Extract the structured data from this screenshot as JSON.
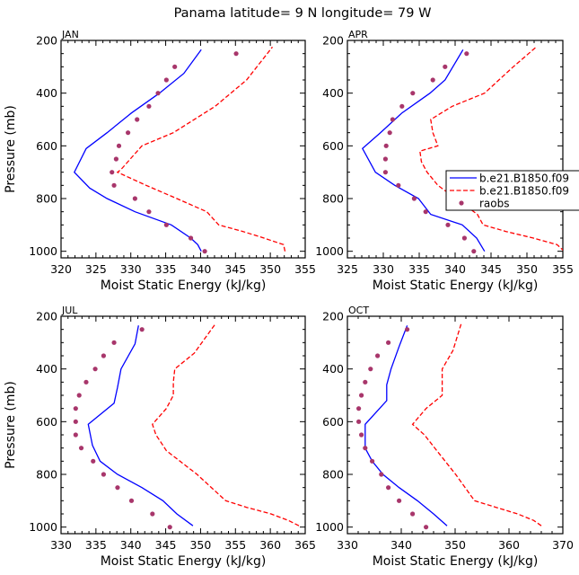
{
  "figure_title": "Panama   latitude= 9 N longitude= 79 W",
  "legend": {
    "placement": "right of APR panel",
    "entries": [
      {
        "label": "b.e21.B1850.f09",
        "style": "solid",
        "color": "#0000ff"
      },
      {
        "label": "b.e21.B1850.f09",
        "style": "dashed",
        "color": "#ff0000"
      },
      {
        "label": "raobs",
        "style": "dots",
        "color": "#a8366b"
      }
    ]
  },
  "chart_data": [
    {
      "type": "line",
      "panel": "JAN",
      "xlabel": "Moist Static Energy (kJ/kg)",
      "ylabel": "Pressure (mb)",
      "xlim": [
        320,
        355
      ],
      "ylim": [
        1025,
        200
      ],
      "xticks": [
        320,
        325,
        330,
        335,
        340,
        345,
        350,
        355
      ],
      "yticks": [
        200,
        400,
        600,
        800,
        1000
      ],
      "series": [
        {
          "style": "solid",
          "color": "#0000ff",
          "points": [
            [
              340.1,
              1000
            ],
            [
              339.6,
              975
            ],
            [
              338.6,
              950
            ],
            [
              335.8,
              900
            ],
            [
              330.6,
              850
            ],
            [
              326.6,
              800
            ],
            [
              324.1,
              760
            ],
            [
              321.9,
              700
            ],
            [
              323.6,
              610
            ],
            [
              326.6,
              550
            ],
            [
              330.1,
              475
            ],
            [
              334.1,
              400
            ],
            [
              337.6,
              325
            ],
            [
              340.1,
              235
            ]
          ]
        },
        {
          "style": "dashed",
          "color": "#ff0000",
          "points": [
            [
              352.1,
              1000
            ],
            [
              351.9,
              975
            ],
            [
              349.1,
              950
            ],
            [
              346.1,
              925
            ],
            [
              342.6,
              900
            ],
            [
              340.9,
              850
            ],
            [
              336.6,
              800
            ],
            [
              332.2,
              750
            ],
            [
              328.1,
              700
            ],
            [
              328.6,
              690
            ],
            [
              331.6,
              600
            ],
            [
              336.1,
              550
            ],
            [
              342.1,
              450
            ],
            [
              346.6,
              350
            ],
            [
              350.3,
              225
            ]
          ]
        },
        {
          "style": "dots",
          "color": "#a8366b",
          "points": [
            [
              340.6,
              1000
            ],
            [
              338.6,
              950
            ],
            [
              335.1,
              900
            ],
            [
              332.6,
              850
            ],
            [
              330.6,
              800
            ],
            [
              327.6,
              750
            ],
            [
              327.3,
              700
            ],
            [
              327.9,
              650
            ],
            [
              328.3,
              600
            ],
            [
              329.6,
              550
            ],
            [
              330.9,
              500
            ],
            [
              332.6,
              450
            ],
            [
              333.9,
              400
            ],
            [
              335.1,
              350
            ],
            [
              336.3,
              300
            ],
            [
              345.1,
              250
            ]
          ]
        }
      ]
    },
    {
      "type": "line",
      "panel": "APR",
      "xlabel": "Moist Static Energy (kJ/kg)",
      "ylabel": "",
      "xlim": [
        325,
        355
      ],
      "ylim": [
        1025,
        200
      ],
      "xticks": [
        325,
        330,
        335,
        340,
        345,
        350,
        355
      ],
      "yticks": [
        200,
        400,
        600,
        800,
        1000
      ],
      "series": [
        {
          "style": "solid",
          "color": "#0000ff",
          "points": [
            [
              344.1,
              1000
            ],
            [
              343.0,
              950
            ],
            [
              341.0,
              900
            ],
            [
              336.6,
              860
            ],
            [
              334.9,
              800
            ],
            [
              331.6,
              750
            ],
            [
              328.9,
              700
            ],
            [
              327.1,
              610
            ],
            [
              329.6,
              550
            ],
            [
              332.6,
              475
            ],
            [
              336.5,
              400
            ],
            [
              338.6,
              350
            ],
            [
              341.1,
              235
            ]
          ]
        },
        {
          "style": "dashed",
          "color": "#ff0000",
          "points": [
            [
              355.2,
              1000
            ],
            [
              354.2,
              975
            ],
            [
              350.9,
              950
            ],
            [
              347.1,
              925
            ],
            [
              343.9,
              900
            ],
            [
              343.1,
              860
            ],
            [
              340.1,
              800
            ],
            [
              337.6,
              750
            ],
            [
              336.1,
              700
            ],
            [
              335.3,
              660
            ],
            [
              335.1,
              620
            ],
            [
              337.6,
              600
            ],
            [
              336.9,
              550
            ],
            [
              336.6,
              500
            ],
            [
              339.6,
              450
            ],
            [
              344.1,
              400
            ],
            [
              348.1,
              300
            ],
            [
              351.3,
              225
            ]
          ]
        },
        {
          "style": "dots",
          "color": "#a8366b",
          "points": [
            [
              342.6,
              1000
            ],
            [
              341.3,
              950
            ],
            [
              339.0,
              900
            ],
            [
              335.9,
              850
            ],
            [
              334.3,
              800
            ],
            [
              332.1,
              750
            ],
            [
              330.3,
              700
            ],
            [
              330.3,
              650
            ],
            [
              330.4,
              600
            ],
            [
              330.9,
              550
            ],
            [
              331.3,
              500
            ],
            [
              332.6,
              450
            ],
            [
              334.1,
              400
            ],
            [
              336.9,
              350
            ],
            [
              338.6,
              300
            ],
            [
              341.6,
              250
            ]
          ]
        }
      ]
    },
    {
      "type": "line",
      "panel": "JUL",
      "xlabel": "Moist Static Energy (kJ/kg)",
      "ylabel": "Pressure (mb)",
      "xlim": [
        330,
        365
      ],
      "ylim": [
        1025,
        200
      ],
      "xticks": [
        330,
        335,
        340,
        345,
        350,
        355,
        360,
        365
      ],
      "yticks": [
        200,
        400,
        600,
        800,
        1000
      ],
      "series": [
        {
          "style": "solid",
          "color": "#0000ff",
          "points": [
            [
              348.9,
              995
            ],
            [
              346.6,
              950
            ],
            [
              344.6,
              900
            ],
            [
              341.6,
              850
            ],
            [
              338.1,
              800
            ],
            [
              335.6,
              750
            ],
            [
              334.5,
              690
            ],
            [
              333.9,
              610
            ],
            [
              337.6,
              530
            ],
            [
              338.1,
              470
            ],
            [
              338.6,
              400
            ],
            [
              340.6,
              305
            ],
            [
              341.1,
              235
            ]
          ]
        },
        {
          "style": "dashed",
          "color": "#ff0000",
          "points": [
            [
              364.1,
              995
            ],
            [
              362.6,
              975
            ],
            [
              360.1,
              950
            ],
            [
              356.6,
              925
            ],
            [
              353.6,
              900
            ],
            [
              349.5,
              800
            ],
            [
              345.1,
              710
            ],
            [
              344.6,
              690
            ],
            [
              343.6,
              650
            ],
            [
              343.1,
              610
            ],
            [
              345.1,
              550
            ],
            [
              346.1,
              500
            ],
            [
              346.1,
              450
            ],
            [
              346.3,
              400
            ],
            [
              349.1,
              340
            ],
            [
              352.1,
              230
            ]
          ]
        },
        {
          "style": "dots",
          "color": "#a8366b",
          "points": [
            [
              345.6,
              1000
            ],
            [
              343.1,
              950
            ],
            [
              340.1,
              900
            ],
            [
              338.1,
              850
            ],
            [
              336.1,
              800
            ],
            [
              334.6,
              750
            ],
            [
              332.9,
              700
            ],
            [
              332.1,
              650
            ],
            [
              332.1,
              600
            ],
            [
              332.1,
              550
            ],
            [
              332.6,
              500
            ],
            [
              333.6,
              450
            ],
            [
              334.9,
              400
            ],
            [
              336.1,
              350
            ],
            [
              337.6,
              300
            ],
            [
              341.6,
              250
            ]
          ]
        }
      ]
    },
    {
      "type": "line",
      "panel": "OCT",
      "xlabel": "Moist Static Energy (kJ/kg)",
      "ylabel": "",
      "xlim": [
        330,
        370
      ],
      "ylim": [
        1025,
        200
      ],
      "xticks": [
        330,
        340,
        350,
        360,
        370
      ],
      "yticks": [
        200,
        400,
        600,
        800,
        1000
      ],
      "series": [
        {
          "style": "solid",
          "color": "#0000ff",
          "points": [
            [
              348.5,
              995
            ],
            [
              346.0,
              950
            ],
            [
              343.0,
              900
            ],
            [
              339.6,
              850
            ],
            [
              336.6,
              800
            ],
            [
              334.6,
              750
            ],
            [
              333.3,
              700
            ],
            [
              333.3,
              610
            ],
            [
              337.3,
              520
            ],
            [
              337.3,
              460
            ],
            [
              338.1,
              400
            ],
            [
              339.6,
              315
            ],
            [
              341.1,
              235
            ]
          ]
        },
        {
          "style": "dashed",
          "color": "#ff0000",
          "points": [
            [
              366.0,
              995
            ],
            [
              364.6,
              975
            ],
            [
              361.6,
              950
            ],
            [
              357.6,
              925
            ],
            [
              353.6,
              900
            ],
            [
              350.1,
              800
            ],
            [
              346.6,
              710
            ],
            [
              344.3,
              650
            ],
            [
              342.1,
              610
            ],
            [
              344.6,
              550
            ],
            [
              347.6,
              500
            ],
            [
              347.6,
              400
            ],
            [
              349.6,
              330
            ],
            [
              351.1,
              230
            ]
          ]
        },
        {
          "style": "dots",
          "color": "#a8366b",
          "points": [
            [
              344.6,
              1000
            ],
            [
              342.1,
              950
            ],
            [
              339.6,
              900
            ],
            [
              337.6,
              850
            ],
            [
              336.3,
              800
            ],
            [
              334.6,
              750
            ],
            [
              333.3,
              700
            ],
            [
              332.6,
              650
            ],
            [
              332.1,
              600
            ],
            [
              332.1,
              550
            ],
            [
              332.6,
              500
            ],
            [
              333.3,
              450
            ],
            [
              334.3,
              400
            ],
            [
              335.6,
              350
            ],
            [
              337.6,
              300
            ],
            [
              341.1,
              250
            ]
          ]
        }
      ]
    }
  ]
}
